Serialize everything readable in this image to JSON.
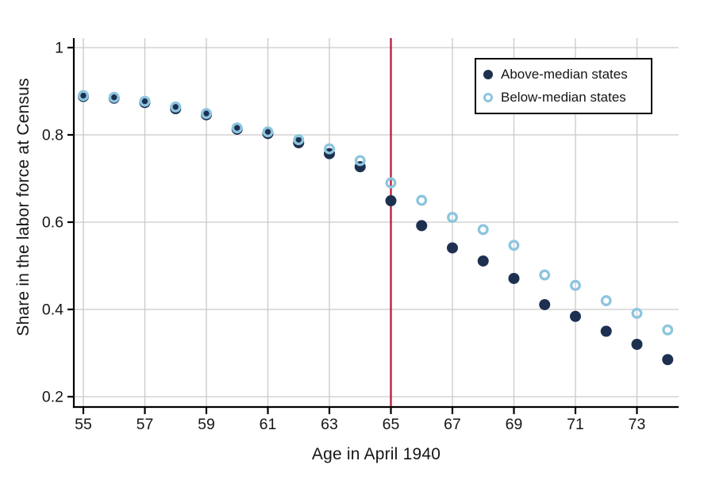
{
  "figure": {
    "kind": "scatter-figure",
    "background": "#ffffff"
  },
  "legend": {
    "position": "top-right",
    "items": [
      {
        "label": "Above-median states",
        "marker": "filled-circle",
        "color": "#1e3050"
      },
      {
        "label": "Below-median states",
        "marker": "open-circle",
        "color": "#8cc5de"
      }
    ]
  },
  "chart_data": {
    "type": "scatter",
    "title": "",
    "xlabel": "Age in April 1940",
    "ylabel": "Share in the labor force at Census",
    "x": [
      55,
      56,
      57,
      58,
      59,
      60,
      61,
      62,
      63,
      64,
      65,
      66,
      67,
      68,
      69,
      70,
      71,
      72,
      73,
      74
    ],
    "series": [
      {
        "name": "Above-median states",
        "marker": "filled-circle",
        "color": "#1e3050",
        "values": [
          0.888,
          0.884,
          0.874,
          0.86,
          0.846,
          0.813,
          0.803,
          0.782,
          0.757,
          0.727,
          0.649,
          0.592,
          0.541,
          0.511,
          0.471,
          0.411,
          0.384,
          0.35,
          0.32,
          0.285
        ]
      },
      {
        "name": "Below-median states",
        "marker": "open-circle",
        "color": "#8cc5de",
        "values": [
          0.89,
          0.886,
          0.877,
          0.864,
          0.849,
          0.816,
          0.807,
          0.789,
          0.768,
          0.741,
          0.69,
          0.65,
          0.611,
          0.583,
          0.547,
          0.479,
          0.455,
          0.42,
          0.391,
          0.353
        ]
      }
    ],
    "x_ticks": [
      55,
      57,
      59,
      61,
      63,
      65,
      67,
      69,
      71,
      73
    ],
    "y_ticks": [
      {
        "value": 1.0,
        "label": "1"
      },
      {
        "value": 0.8,
        "label": "0.8"
      },
      {
        "value": 0.6,
        "label": "0.6"
      },
      {
        "value": 0.4,
        "label": "0.4"
      },
      {
        "value": 0.2,
        "label": "0.2"
      }
    ],
    "xlim": [
      54.7,
      74.35
    ],
    "ylim": [
      0.175,
      1.045
    ],
    "grid": true,
    "legend_position": "top-right",
    "reference_line": {
      "axis": "x",
      "value": 65,
      "color": "#bf2043"
    },
    "colors": {
      "grid": "#cacaca",
      "axis": "#000000",
      "text": "#161616",
      "reference_line": "#bf2043"
    }
  }
}
